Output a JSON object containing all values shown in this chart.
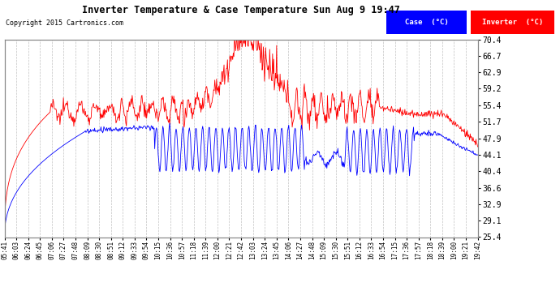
{
  "title": "Inverter Temperature & Case Temperature Sun Aug 9 19:47",
  "copyright": "Copyright 2015 Cartronics.com",
  "bg_color": "#ffffff",
  "plot_bg_color": "#ffffff",
  "grid_color": "#bbbbbb",
  "y_ticks": [
    25.4,
    29.1,
    32.9,
    36.6,
    40.4,
    44.1,
    47.9,
    51.7,
    55.4,
    59.2,
    62.9,
    66.7,
    70.4
  ],
  "x_labels": [
    "05:41",
    "06:03",
    "06:24",
    "06:45",
    "07:06",
    "07:27",
    "07:48",
    "08:09",
    "08:30",
    "08:51",
    "09:12",
    "09:33",
    "09:54",
    "10:15",
    "10:36",
    "10:57",
    "11:18",
    "11:39",
    "12:00",
    "12:21",
    "12:42",
    "13:03",
    "13:24",
    "13:45",
    "14:06",
    "14:27",
    "14:48",
    "15:09",
    "15:30",
    "15:51",
    "16:12",
    "16:33",
    "16:54",
    "17:15",
    "17:36",
    "17:57",
    "18:18",
    "18:39",
    "19:00",
    "19:21",
    "19:42"
  ],
  "legend_case_color": "#0000ff",
  "legend_inverter_color": "#ff0000",
  "case_label": "Case  (°C)",
  "inverter_label": "Inverter  (°C)"
}
